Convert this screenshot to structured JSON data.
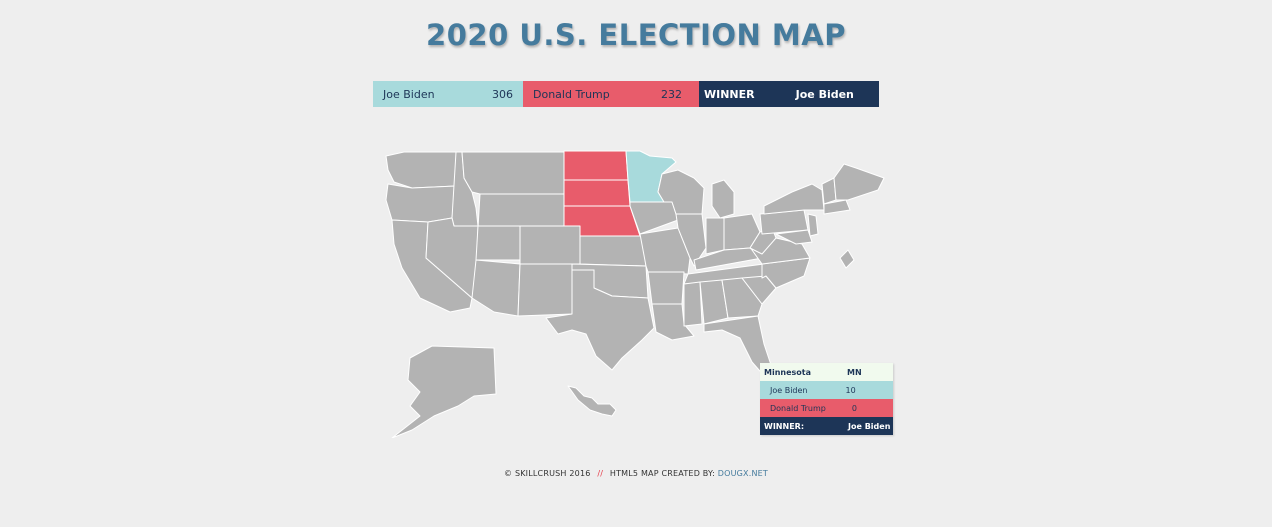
{
  "page": {
    "title": "2020 U.S. ELECTION MAP"
  },
  "scoreboard": {
    "candidate1": {
      "name": "Joe Biden",
      "votes": "306",
      "color": "#a8dadc"
    },
    "candidate2": {
      "name": "Donald Trump",
      "votes": "232",
      "color": "#e85c6b"
    },
    "winner_label": "WINNER",
    "winner_name": "Joe Biden",
    "winner_color": "#1d3557"
  },
  "map": {
    "states_highlighted": [
      {
        "state": "North Dakota",
        "party": "trump"
      },
      {
        "state": "South Dakota",
        "party": "trump"
      },
      {
        "state": "Nebraska",
        "party": "trump"
      },
      {
        "state": "Minnesota",
        "party": "biden"
      }
    ],
    "default_color": "#b3b3b3"
  },
  "info_panel": {
    "state_name": "Minnesota",
    "state_abbr": "MN",
    "candidate1_name": "Joe Biden",
    "candidate1_votes": "10",
    "candidate2_name": "Donald Trump",
    "candidate2_votes": "0",
    "winner_label": "WINNER:",
    "winner_name": "Joe Biden"
  },
  "footer": {
    "credit": "© SKILLCRUSH 2016",
    "separator": "//",
    "label": "HTML5 MAP CREATED BY:",
    "link": "DOUGX.NET"
  }
}
